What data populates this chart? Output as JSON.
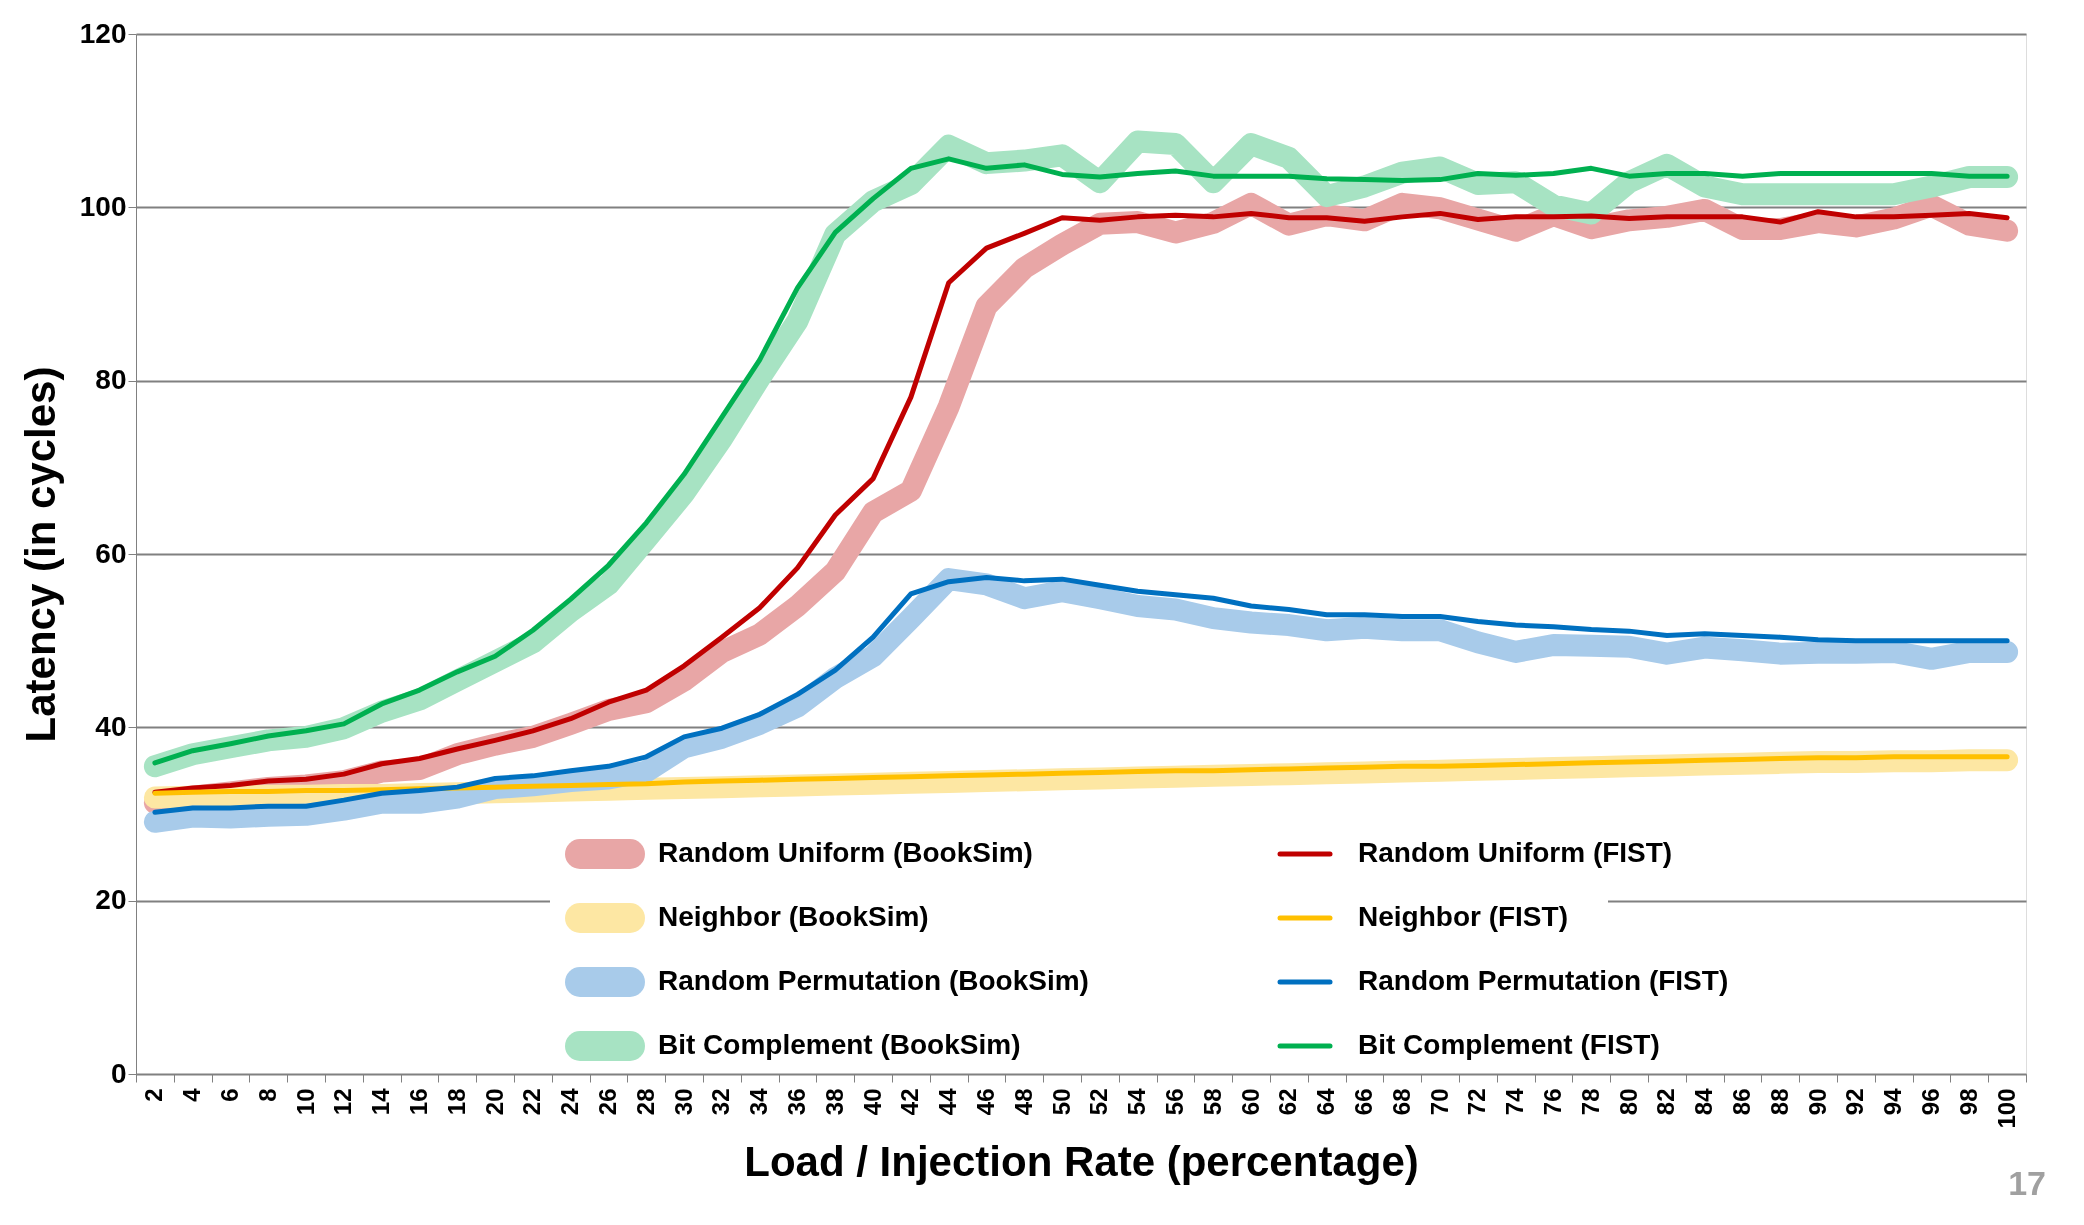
{
  "chart_data": {
    "type": "line",
    "xlabel": "Load / Injection Rate (percentage)",
    "ylabel": "Latency (in cycles)",
    "categories": [
      "2",
      "4",
      "6",
      "8",
      "10",
      "12",
      "14",
      "16",
      "18",
      "20",
      "22",
      "24",
      "26",
      "28",
      "30",
      "32",
      "34",
      "36",
      "38",
      "40",
      "42",
      "44",
      "46",
      "48",
      "50",
      "52",
      "54",
      "56",
      "58",
      "60",
      "62",
      "64",
      "66",
      "68",
      "70",
      "72",
      "74",
      "76",
      "78",
      "80",
      "82",
      "84",
      "86",
      "88",
      "90",
      "92",
      "94",
      "96",
      "98",
      "100"
    ],
    "series": [
      {
        "name": "Random Uniform (BookSim)",
        "color": "#e8a6a6",
        "values": [
          31.3,
          32.0,
          32.5,
          33.0,
          33.3,
          33.8,
          34.9,
          35.2,
          36.9,
          38.0,
          38.9,
          40.4,
          42.0,
          42.9,
          45.4,
          48.7,
          50.7,
          54.0,
          58.0,
          64.8,
          67.3,
          77.0,
          88.6,
          93.0,
          95.7,
          98.1,
          98.3,
          97.1,
          98.2,
          100.4,
          98.0,
          99.1,
          98.5,
          100.4,
          99.9,
          98.6,
          97.3,
          99.1,
          97.6,
          98.5,
          98.9,
          99.7,
          97.5,
          97.5,
          98.3,
          97.8,
          98.7,
          100.2,
          98.0,
          97.3
        ]
      },
      {
        "name": "Random Uniform (FIST)",
        "color": "#c00000",
        "values": [
          32.5,
          33.0,
          33.3,
          33.8,
          34.0,
          34.6,
          35.8,
          36.4,
          37.5,
          38.5,
          39.6,
          41.0,
          42.9,
          44.3,
          47.1,
          50.4,
          53.8,
          58.4,
          64.5,
          68.7,
          78.1,
          91.3,
          95.3,
          97.0,
          98.8,
          98.5,
          98.9,
          99.1,
          98.9,
          99.3,
          98.8,
          98.8,
          98.4,
          98.9,
          99.3,
          98.6,
          98.9,
          98.9,
          99.0,
          98.7,
          98.9,
          98.9,
          98.9,
          98.3,
          99.5,
          98.9,
          98.9,
          99.1,
          99.3,
          98.8
        ]
      },
      {
        "name": "Neighbor (BookSim)",
        "color": "#fde7a3",
        "values": [
          31.9,
          32.0,
          32.0,
          32.1,
          32.1,
          32.2,
          32.2,
          32.3,
          32.4,
          32.5,
          32.6,
          32.7,
          32.8,
          32.9,
          33.0,
          33.1,
          33.2,
          33.3,
          33.4,
          33.5,
          33.6,
          33.7,
          33.8,
          33.9,
          34.0,
          34.1,
          34.2,
          34.3,
          34.4,
          34.5,
          34.6,
          34.7,
          34.8,
          34.9,
          35.0,
          35.1,
          35.2,
          35.3,
          35.4,
          35.5,
          35.6,
          35.7,
          35.8,
          35.9,
          36.0,
          36.0,
          36.1,
          36.1,
          36.2,
          36.2
        ]
      },
      {
        "name": "Neighbor (FIST)",
        "color": "#ffc000",
        "values": [
          32.4,
          32.5,
          32.6,
          32.6,
          32.7,
          32.7,
          32.8,
          32.9,
          33.0,
          33.1,
          33.2,
          33.3,
          33.4,
          33.5,
          33.7,
          33.8,
          33.9,
          34.0,
          34.1,
          34.2,
          34.3,
          34.4,
          34.5,
          34.6,
          34.7,
          34.8,
          34.9,
          35.0,
          35.0,
          35.1,
          35.2,
          35.3,
          35.4,
          35.5,
          35.5,
          35.6,
          35.7,
          35.8,
          35.9,
          36.0,
          36.1,
          36.2,
          36.3,
          36.4,
          36.5,
          36.5,
          36.6,
          36.6,
          36.6,
          36.6
        ]
      },
      {
        "name": "Random Permutation (BookSim)",
        "color": "#a8cbea",
        "values": [
          29.1,
          29.7,
          29.6,
          29.8,
          29.9,
          30.5,
          31.3,
          31.3,
          31.9,
          33.0,
          33.3,
          33.8,
          34.1,
          34.9,
          37.7,
          38.8,
          40.4,
          42.4,
          45.7,
          48.2,
          52.6,
          57.1,
          56.5,
          54.9,
          55.7,
          54.9,
          54.0,
          53.6,
          52.6,
          52.1,
          51.8,
          51.2,
          51.5,
          51.2,
          51.2,
          49.8,
          48.7,
          49.5,
          49.4,
          49.3,
          48.5,
          49.2,
          48.9,
          48.5,
          48.6,
          48.6,
          48.7,
          47.9,
          48.7,
          48.7
        ]
      },
      {
        "name": "Random Permutation (FIST)",
        "color": "#0070c0",
        "values": [
          30.2,
          30.7,
          30.7,
          30.9,
          30.9,
          31.6,
          32.4,
          32.7,
          33.1,
          34.1,
          34.4,
          35.0,
          35.5,
          36.6,
          38.9,
          39.9,
          41.5,
          43.8,
          46.6,
          50.4,
          55.4,
          56.8,
          57.3,
          56.9,
          57.1,
          56.4,
          55.7,
          55.3,
          54.9,
          54.0,
          53.6,
          53.0,
          53.0,
          52.8,
          52.8,
          52.2,
          51.8,
          51.6,
          51.3,
          51.1,
          50.6,
          50.8,
          50.6,
          50.4,
          50.1,
          50.0,
          50.0,
          50.0,
          50.0,
          50.0
        ]
      },
      {
        "name": "Bit Complement (BookSim)",
        "color": "#a7e3c3",
        "values": [
          35.5,
          36.9,
          37.7,
          38.5,
          38.9,
          39.9,
          41.8,
          43.2,
          45.4,
          47.6,
          49.8,
          53.4,
          56.5,
          61.7,
          67.0,
          73.3,
          80.3,
          86.9,
          96.9,
          100.7,
          102.7,
          107.1,
          105.1,
          105.4,
          106.0,
          102.9,
          107.6,
          107.3,
          102.9,
          107.3,
          105.7,
          101.3,
          102.4,
          104.0,
          104.6,
          102.7,
          102.9,
          100.2,
          99.3,
          102.9,
          104.9,
          102.4,
          101.5,
          101.5,
          101.5,
          101.5,
          101.5,
          102.4,
          103.5,
          103.5
        ]
      },
      {
        "name": "Bit Complement (FIST)",
        "color": "#00b050",
        "values": [
          35.9,
          37.3,
          38.1,
          39.0,
          39.6,
          40.4,
          42.7,
          44.3,
          46.4,
          48.2,
          51.2,
          54.8,
          58.7,
          63.6,
          69.2,
          75.8,
          82.4,
          90.7,
          97.1,
          101.0,
          104.5,
          105.6,
          104.5,
          104.9,
          103.8,
          103.5,
          103.9,
          104.2,
          103.6,
          103.6,
          103.6,
          103.3,
          103.2,
          103.1,
          103.2,
          103.9,
          103.7,
          103.9,
          104.5,
          103.6,
          103.9,
          103.9,
          103.6,
          103.9,
          103.9,
          103.9,
          103.9,
          103.9,
          103.6,
          103.6
        ]
      }
    ],
    "ylim": [
      0,
      120
    ],
    "yticks": [
      0,
      20,
      40,
      60,
      80,
      100,
      120
    ],
    "grid": "y",
    "legend": "bottom",
    "annotations": [
      "17"
    ]
  }
}
